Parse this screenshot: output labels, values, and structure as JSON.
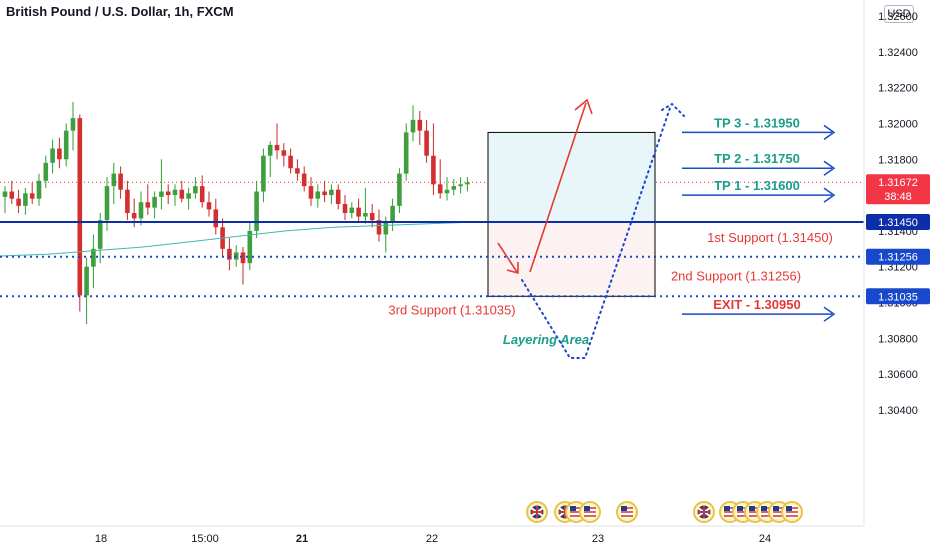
{
  "chart_data": {
    "type": "candlestick",
    "title": "British Pound / U.S. Dollar, 1h, FXCM",
    "currency": "USD",
    "ylim": [
      1.3028,
      1.3268
    ],
    "y_ticks": [
      "1.32600",
      "1.32400",
      "1.32200",
      "1.32000",
      "1.31800",
      "1.31400",
      "1.31200",
      "1.31000",
      "1.30800",
      "1.30600",
      "1.30400"
    ],
    "x_ticks": [
      "18",
      "15:00",
      "21",
      "22",
      "23",
      "24"
    ],
    "current_price": "1.31672",
    "countdown": "38:48",
    "price_labels": [
      {
        "id": "support-1",
        "value": 1.3145,
        "label": "1.31450",
        "color": "#0d2ea8"
      },
      {
        "id": "support-2",
        "value": 1.31256,
        "label": "1.31256",
        "color": "#1848cc"
      },
      {
        "id": "support-3",
        "value": 1.31035,
        "label": "1.31035",
        "color": "#1848cc"
      }
    ],
    "levels": {
      "support_1": {
        "value": 1.3145,
        "text": "1st Support (1.31450)"
      },
      "support_2": {
        "value": 1.31256,
        "text": "2nd Support (1.31256)"
      },
      "support_3": {
        "value": 1.31035,
        "text": "3rd Support (1.31035)"
      },
      "tp3": {
        "value": 1.3195,
        "text": "TP 3 - 1.31950"
      },
      "tp2": {
        "value": 1.3175,
        "text": "TP 2 - 1.31750"
      },
      "tp1": {
        "value": 1.316,
        "text": "TP 1 - 1.31600"
      },
      "exit": {
        "value": 1.3095,
        "text": "EXIT - 1.30950"
      }
    },
    "layering_area_label": "Layering Area",
    "candles": [
      [
        1.3159,
        1.3165,
        1.315,
        1.3162
      ],
      [
        1.3162,
        1.3168,
        1.3155,
        1.3158
      ],
      [
        1.3158,
        1.3163,
        1.315,
        1.3154
      ],
      [
        1.3154,
        1.3164,
        1.3149,
        1.3161
      ],
      [
        1.3161,
        1.3167,
        1.3155,
        1.3158
      ],
      [
        1.3158,
        1.3172,
        1.3154,
        1.3168
      ],
      [
        1.3168,
        1.3182,
        1.3164,
        1.3178
      ],
      [
        1.3178,
        1.3191,
        1.3172,
        1.3186
      ],
      [
        1.3186,
        1.3192,
        1.3175,
        1.318
      ],
      [
        1.318,
        1.32,
        1.3176,
        1.3196
      ],
      [
        1.3196,
        1.3212,
        1.3185,
        1.3203
      ],
      [
        1.3203,
        1.3205,
        1.3095,
        1.3104
      ],
      [
        1.3104,
        1.3125,
        1.3088,
        1.312
      ],
      [
        1.312,
        1.3138,
        1.3108,
        1.313
      ],
      [
        1.313,
        1.315,
        1.3122,
        1.3146
      ],
      [
        1.3146,
        1.317,
        1.314,
        1.3165
      ],
      [
        1.3165,
        1.3178,
        1.3155,
        1.3172
      ],
      [
        1.3172,
        1.3176,
        1.3158,
        1.3163
      ],
      [
        1.3163,
        1.3168,
        1.3146,
        1.315
      ],
      [
        1.315,
        1.3158,
        1.3142,
        1.3147
      ],
      [
        1.3147,
        1.3162,
        1.3143,
        1.3156
      ],
      [
        1.3156,
        1.3166,
        1.3149,
        1.3153
      ],
      [
        1.3153,
        1.3162,
        1.3147,
        1.3159
      ],
      [
        1.3159,
        1.318,
        1.3152,
        1.3162
      ],
      [
        1.3162,
        1.3166,
        1.3155,
        1.316
      ],
      [
        1.316,
        1.3166,
        1.3154,
        1.3163
      ],
      [
        1.3163,
        1.3168,
        1.3156,
        1.3158
      ],
      [
        1.3158,
        1.3164,
        1.3152,
        1.3161
      ],
      [
        1.3161,
        1.317,
        1.3158,
        1.3165
      ],
      [
        1.3165,
        1.3171,
        1.3153,
        1.3156
      ],
      [
        1.3156,
        1.3162,
        1.3148,
        1.3152
      ],
      [
        1.3152,
        1.3158,
        1.3138,
        1.3142
      ],
      [
        1.3142,
        1.3147,
        1.3126,
        1.313
      ],
      [
        1.313,
        1.3136,
        1.3118,
        1.3124
      ],
      [
        1.3124,
        1.3132,
        1.312,
        1.3128
      ],
      [
        1.3128,
        1.3131,
        1.311,
        1.3122
      ],
      [
        1.3122,
        1.3145,
        1.3118,
        1.314
      ],
      [
        1.314,
        1.3168,
        1.3136,
        1.3162
      ],
      [
        1.3162,
        1.3186,
        1.3156,
        1.3182
      ],
      [
        1.3182,
        1.319,
        1.317,
        1.3188
      ],
      [
        1.3188,
        1.32,
        1.318,
        1.3185
      ],
      [
        1.3185,
        1.3189,
        1.3176,
        1.3182
      ],
      [
        1.3182,
        1.3186,
        1.3172,
        1.3175
      ],
      [
        1.3175,
        1.318,
        1.3168,
        1.3172
      ],
      [
        1.3172,
        1.3176,
        1.3162,
        1.3165
      ],
      [
        1.3165,
        1.317,
        1.3154,
        1.3158
      ],
      [
        1.3158,
        1.3166,
        1.3153,
        1.3162
      ],
      [
        1.3162,
        1.3168,
        1.3156,
        1.316
      ],
      [
        1.316,
        1.3166,
        1.3155,
        1.3163
      ],
      [
        1.3163,
        1.3166,
        1.3152,
        1.3155
      ],
      [
        1.3155,
        1.316,
        1.3146,
        1.315
      ],
      [
        1.315,
        1.3156,
        1.3147,
        1.3153
      ],
      [
        1.3153,
        1.3158,
        1.3145,
        1.3148
      ],
      [
        1.3148,
        1.3164,
        1.3144,
        1.315
      ],
      [
        1.315,
        1.3155,
        1.3142,
        1.3146
      ],
      [
        1.3146,
        1.3152,
        1.3134,
        1.3138
      ],
      [
        1.3138,
        1.3148,
        1.3128,
        1.3145
      ],
      [
        1.3145,
        1.3158,
        1.314,
        1.3154
      ],
      [
        1.3154,
        1.3175,
        1.315,
        1.3172
      ],
      [
        1.3172,
        1.32,
        1.3168,
        1.3195
      ],
      [
        1.3195,
        1.321,
        1.319,
        1.3202
      ],
      [
        1.3202,
        1.3207,
        1.3188,
        1.3196
      ],
      [
        1.3196,
        1.3202,
        1.3178,
        1.3182
      ],
      [
        1.3182,
        1.32,
        1.316,
        1.3166
      ],
      [
        1.3166,
        1.318,
        1.3158,
        1.3161
      ],
      [
        1.3161,
        1.317,
        1.3157,
        1.3163
      ],
      [
        1.3163,
        1.3169,
        1.316,
        1.3165
      ],
      [
        1.3165,
        1.317,
        1.3161,
        1.3166
      ],
      [
        1.3166,
        1.317,
        1.3162,
        1.3167
      ]
    ],
    "ma_series": [
      1.3126,
      1.3127,
      1.3129,
      1.3131,
      1.3134,
      1.3137,
      1.314,
      1.3142,
      1.3143,
      1.3144,
      1.3145
    ],
    "events_label_count": 2
  }
}
